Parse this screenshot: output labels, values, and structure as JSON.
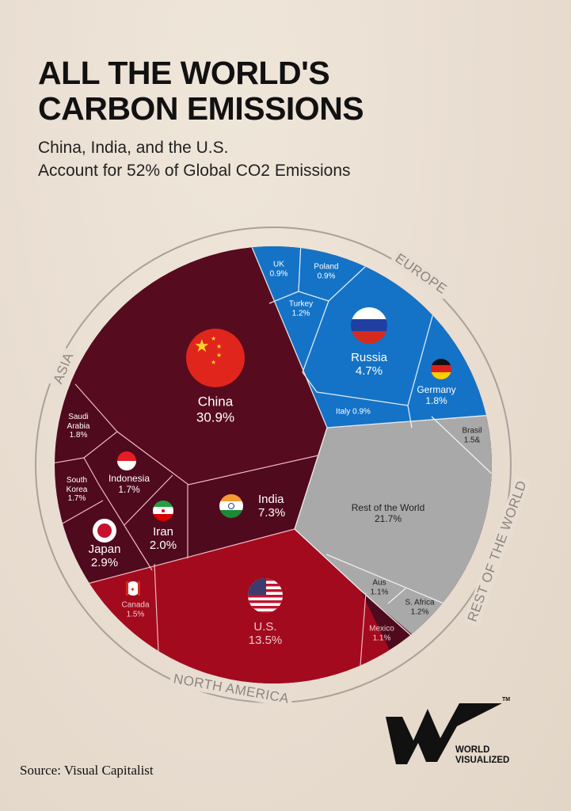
{
  "header": {
    "title_line1": "ALL THE WORLD'S",
    "title_line2": "CARBON EMISSIONS",
    "subtitle_line1": "China, India, and the U.S.",
    "subtitle_line2": "Account for 52% of Global CO2 Emissions"
  },
  "chart_data": {
    "type": "treemap",
    "title": "All the World's Carbon Emissions",
    "unit": "% of global CO2 emissions",
    "groups": [
      {
        "name": "ASIA",
        "color": "#4f0a1e",
        "countries": [
          {
            "name": "China",
            "label": "30.9%",
            "value": 30.9,
            "flag": "china-flag"
          },
          {
            "name": "India",
            "label": "7.3%",
            "value": 7.3,
            "flag": "india-flag"
          },
          {
            "name": "Japan",
            "label": "2.9%",
            "value": 2.9,
            "flag": "japan-flag"
          },
          {
            "name": "Iran",
            "label": "2.0%",
            "value": 2.0,
            "flag": "iran-flag"
          },
          {
            "name": "Saudi Arabia",
            "label": "1.8%",
            "value": 1.8
          },
          {
            "name": "Indonesia",
            "label": "1.7%",
            "value": 1.7,
            "flag": "indonesia-flag"
          },
          {
            "name": "South Korea",
            "label": "1.7%",
            "value": 1.7
          }
        ]
      },
      {
        "name": "EUROPE",
        "color": "#1473c6",
        "countries": [
          {
            "name": "Russia",
            "label": "4.7%",
            "value": 4.7,
            "flag": "russia-flag"
          },
          {
            "name": "Germany",
            "label": "1.8%",
            "value": 1.8,
            "flag": "germany-flag"
          },
          {
            "name": "Turkey",
            "label": "1.2%",
            "value": 1.2
          },
          {
            "name": "UK",
            "label": "0.9%",
            "value": 0.9
          },
          {
            "name": "Poland",
            "label": "0.9%",
            "value": 0.9
          },
          {
            "name": "Italy",
            "label": "Italy 0.9%",
            "value": 0.9
          }
        ]
      },
      {
        "name": "REST OF THE WORLD",
        "color": "#a9a9a9",
        "countries": [
          {
            "name": "Rest of the World",
            "label": "21.7%",
            "value": 21.7
          },
          {
            "name": "Brasil",
            "label": "1.5&",
            "value": 1.5
          },
          {
            "name": "S. Africa",
            "label": "1.2%",
            "value": 1.2
          },
          {
            "name": "Aus",
            "label": "1.1%",
            "value": 1.1
          }
        ]
      },
      {
        "name": "NORTH AMERICA",
        "color": "#a30a1d",
        "countries": [
          {
            "name": "U.S.",
            "label": "13.5%",
            "value": 13.5,
            "flag": "usa-flag"
          },
          {
            "name": "Canada",
            "label": "1.5%",
            "value": 1.5,
            "flag": "canada-flag"
          },
          {
            "name": "Mexico",
            "label": "1.1%",
            "value": 1.1
          }
        ]
      }
    ]
  },
  "footer": {
    "source": "Source: Visual Capitalist",
    "logo_line1": "WORLD",
    "logo_line2": "VISUALIZED",
    "trademark": "TM"
  }
}
